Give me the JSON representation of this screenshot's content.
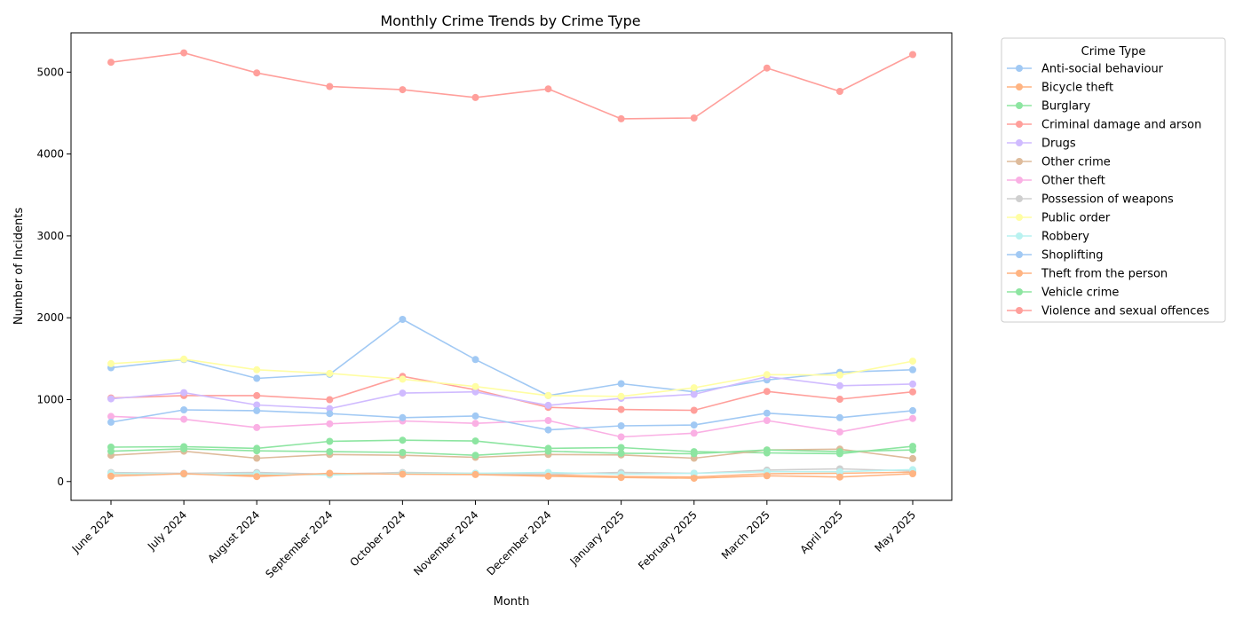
{
  "chart_data": {
    "type": "line",
    "title": "Monthly Crime Trends by Crime Type",
    "xlabel": "Month",
    "ylabel": "Number of Incidents",
    "ylim": [
      -230,
      5480
    ],
    "yticks": [
      0,
      1000,
      2000,
      3000,
      4000,
      5000
    ],
    "grid": false,
    "legend_title": "Crime Type",
    "legend_position": "outside-right",
    "categories": [
      "June 2024",
      "July 2024",
      "August 2024",
      "September 2024",
      "October 2024",
      "November 2024",
      "December 2024",
      "January 2025",
      "February 2025",
      "March 2025",
      "April 2025",
      "May 2025"
    ],
    "series": [
      {
        "name": "Anti-social behaviour",
        "color": "#a1c9f4",
        "values": [
          1390,
          1490,
          1260,
          1310,
          1980,
          1490,
          1050,
          1195,
          1095,
          1240,
          1335,
          1365
        ]
      },
      {
        "name": "Bicycle theft",
        "color": "#ffb482",
        "values": [
          90,
          95,
          80,
          95,
          105,
          90,
          80,
          60,
          55,
          95,
          100,
          115
        ]
      },
      {
        "name": "Burglary",
        "color": "#8de5a1",
        "values": [
          420,
          425,
          405,
          490,
          505,
          495,
          405,
          415,
          365,
          350,
          340,
          430
        ]
      },
      {
        "name": "Criminal damage and arson",
        "color": "#ff9f9b",
        "values": [
          1020,
          1050,
          1050,
          1000,
          1285,
          1120,
          905,
          880,
          870,
          1100,
          1005,
          1095
        ]
      },
      {
        "name": "Drugs",
        "color": "#d0bbff",
        "values": [
          1010,
          1085,
          935,
          890,
          1080,
          1095,
          930,
          1015,
          1065,
          1280,
          1170,
          1190
        ]
      },
      {
        "name": "Other crime",
        "color": "#debb9b",
        "values": [
          320,
          370,
          285,
          330,
          320,
          295,
          330,
          325,
          285,
          385,
          395,
          280
        ]
      },
      {
        "name": "Other theft",
        "color": "#fab0e4",
        "values": [
          795,
          760,
          660,
          705,
          740,
          710,
          745,
          545,
          590,
          745,
          605,
          770
        ]
      },
      {
        "name": "Possession of weapons",
        "color": "#cfcfcf",
        "values": [
          110,
          100,
          110,
          90,
          110,
          100,
          90,
          110,
          100,
          140,
          155,
          130
        ]
      },
      {
        "name": "Public order",
        "color": "#fffea3",
        "values": [
          1440,
          1495,
          1365,
          1320,
          1250,
          1160,
          1050,
          1040,
          1145,
          1305,
          1300,
          1470
        ]
      },
      {
        "name": "Robbery",
        "color": "#b9f2f0",
        "values": [
          100,
          90,
          95,
          80,
          100,
          100,
          110,
          90,
          100,
          120,
          120,
          145
        ]
      },
      {
        "name": "Shoplifting",
        "color": "#a1c9f4",
        "values": [
          725,
          875,
          865,
          830,
          780,
          800,
          630,
          680,
          690,
          835,
          780,
          865
        ]
      },
      {
        "name": "Theft from the person",
        "color": "#ffb482",
        "values": [
          65,
          95,
          60,
          100,
          90,
          85,
          65,
          50,
          40,
          70,
          55,
          95
        ]
      },
      {
        "name": "Vehicle crime",
        "color": "#8de5a1",
        "values": [
          370,
          400,
          375,
          365,
          355,
          320,
          370,
          345,
          340,
          385,
          365,
          385
        ]
      },
      {
        "name": "Violence and sexual offences",
        "color": "#ff9f9b",
        "values": [
          5120,
          5235,
          4990,
          4825,
          4785,
          4690,
          4795,
          4430,
          4440,
          5050,
          4765,
          5215
        ]
      }
    ]
  }
}
